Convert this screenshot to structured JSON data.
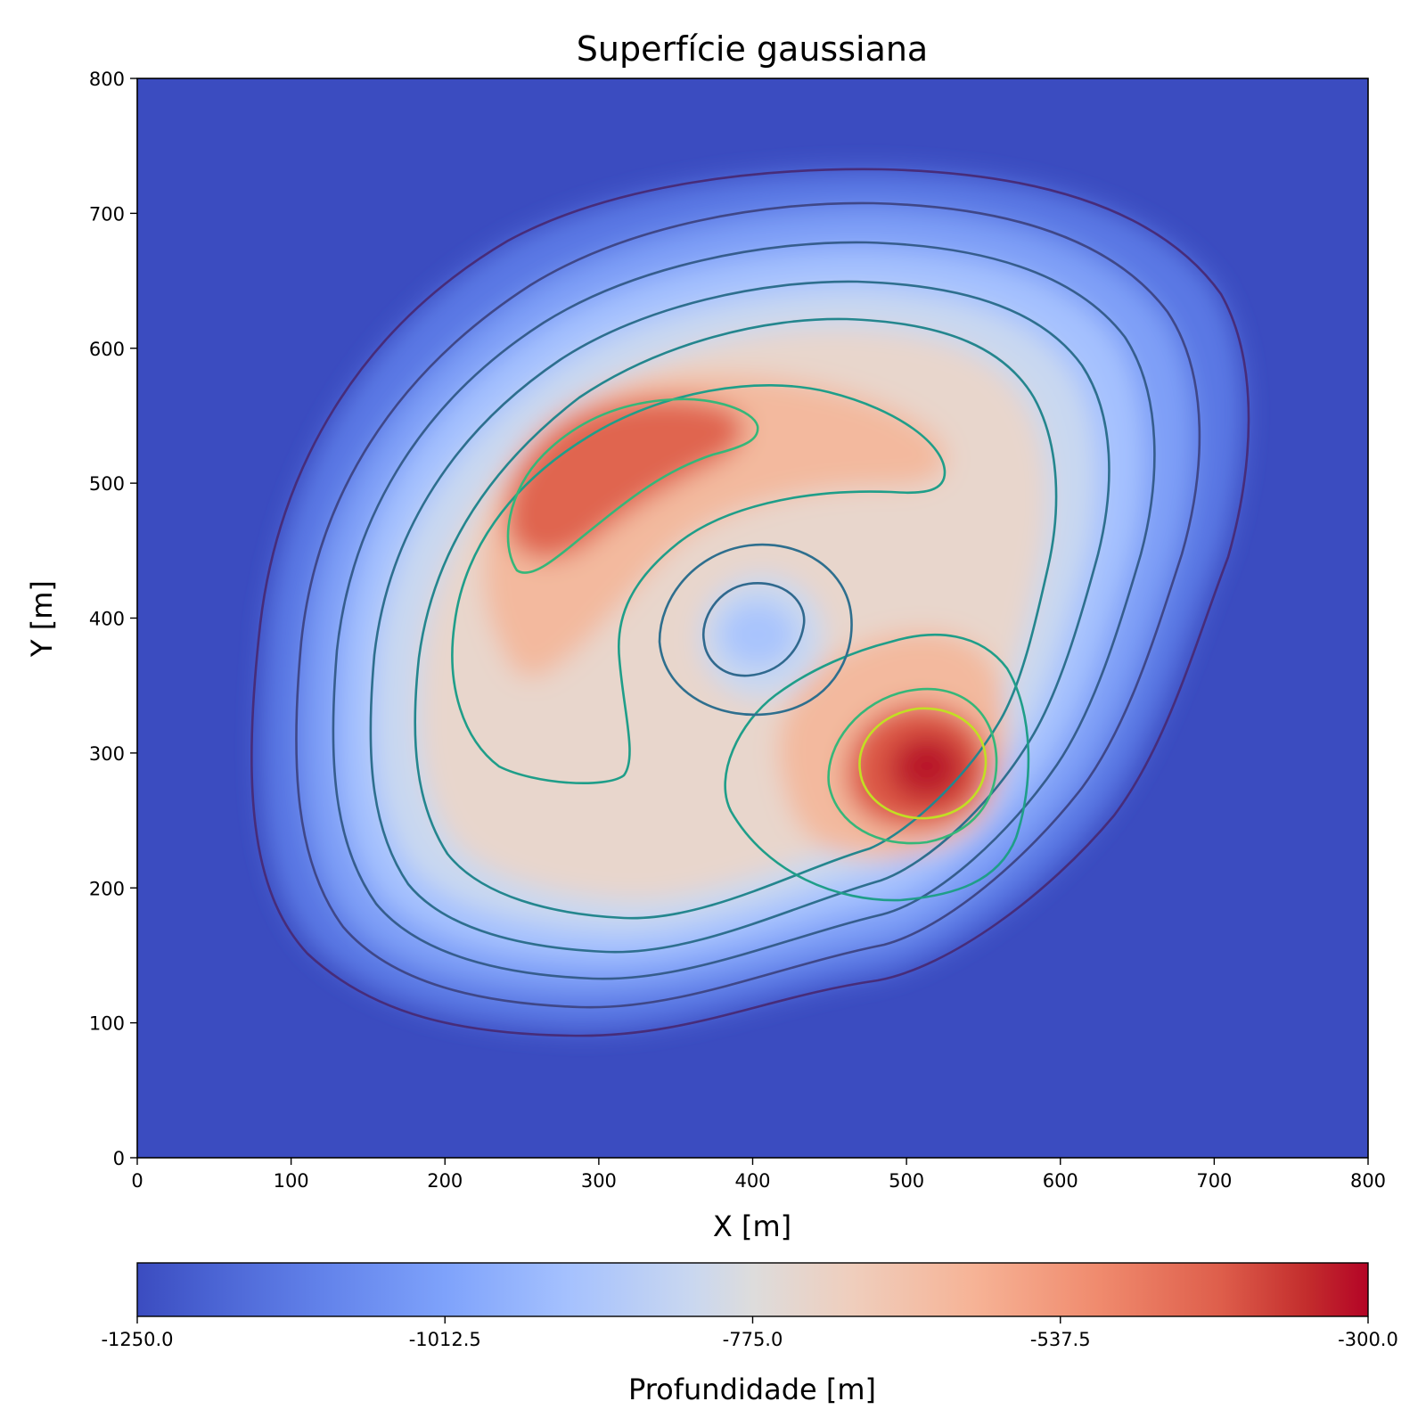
{
  "chart_data": {
    "type": "heatmap",
    "title": "Superfície gaussiana",
    "xlabel": "X [m]",
    "ylabel": "Y [m]",
    "xlim": [
      0,
      800
    ],
    "ylim": [
      0,
      800
    ],
    "x_ticks": [
      "0",
      "100",
      "200",
      "300",
      "400",
      "500",
      "600",
      "700",
      "800"
    ],
    "y_ticks": [
      "0",
      "100",
      "200",
      "300",
      "400",
      "500",
      "600",
      "700",
      "800"
    ],
    "colormap": "coolwarm",
    "colorbar": {
      "label": "Profundidade [m]",
      "range": [
        -1250.0,
        -300.0
      ],
      "ticks": [
        "-1250.0",
        "-1012.5",
        "-775.0",
        "-537.5",
        "-300.0"
      ],
      "orientation": "horizontal",
      "placement": "bottom"
    },
    "surface_features": [
      {
        "kind": "high",
        "center": [
          305,
          515
        ],
        "depth_approx": -420
      },
      {
        "kind": "high",
        "center": [
          512,
          292
        ],
        "depth_approx": -320
      },
      {
        "kind": "low",
        "center": [
          398,
          392
        ],
        "depth_approx": -900
      }
    ],
    "contour_lines": true,
    "grid": false
  }
}
